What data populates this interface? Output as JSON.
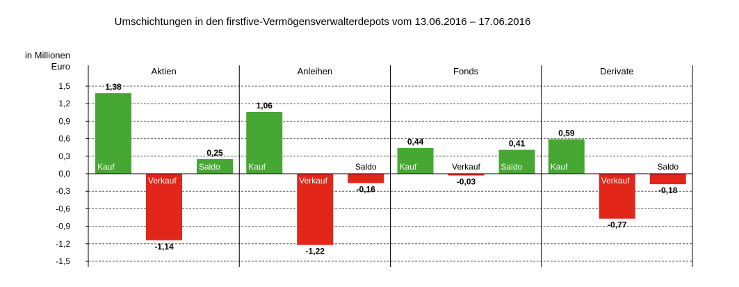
{
  "chart_data": {
    "type": "bar",
    "title": "Umschichtungen in den firstfive-Vermögensverwalterdepots vom 13.06.2016 – 17.06.2016",
    "ylabel": [
      "in Millionen",
      "Euro"
    ],
    "ylim": [
      -1.5,
      1.5
    ],
    "yticks": [
      1.5,
      1.2,
      0.9,
      0.6,
      0.3,
      0.0,
      -0.3,
      -0.6,
      -0.9,
      -1.2,
      -1.5
    ],
    "ytick_labels": [
      "1,5",
      "1,2",
      "0,9",
      "0,6",
      "0,3",
      "0,0",
      "-0,3",
      "-0,6",
      "-0,9",
      "-1,2",
      "-1,5"
    ],
    "grid": true,
    "colors": {
      "positive": "#46a832",
      "negative": "#e2261a"
    },
    "series_names": [
      "Kauf",
      "Verkauf",
      "Saldo"
    ],
    "groups": [
      {
        "name": "Aktien",
        "values": [
          1.38,
          -1.14,
          0.25
        ],
        "labels": [
          "1,38",
          "-1,14",
          "0,25"
        ]
      },
      {
        "name": "Anleihen",
        "values": [
          1.06,
          -1.22,
          -0.16
        ],
        "labels": [
          "1,06",
          "-1,22",
          "-0,16"
        ]
      },
      {
        "name": "Fonds",
        "values": [
          0.44,
          -0.03,
          0.41
        ],
        "labels": [
          "0,44",
          "-0,03",
          "0,41"
        ]
      },
      {
        "name": "Derivate",
        "values": [
          0.59,
          -0.77,
          -0.18
        ],
        "labels": [
          "0,59",
          "-0,77",
          "-0,18"
        ]
      }
    ]
  }
}
